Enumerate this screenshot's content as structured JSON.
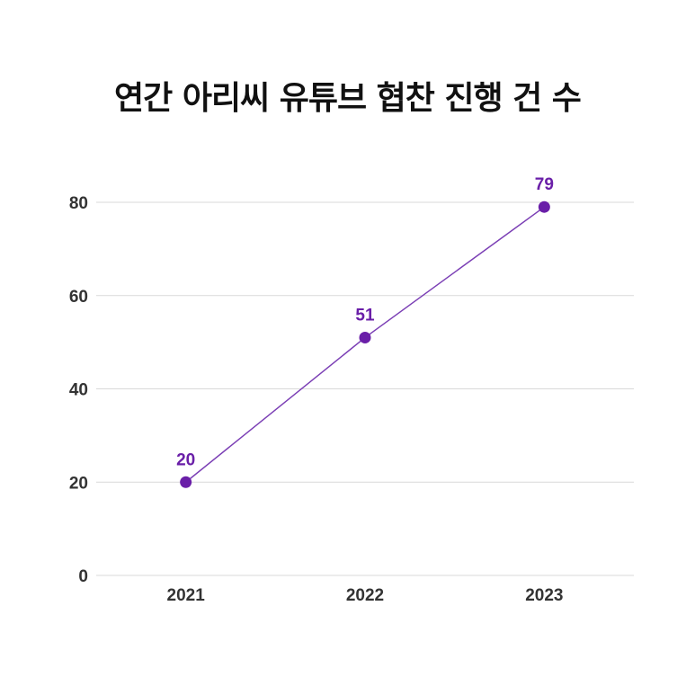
{
  "chart_data": {
    "type": "line",
    "title": "연간 아리씨 유튜브 협찬 진행 건 수",
    "categories": [
      "2021",
      "2022",
      "2023"
    ],
    "series": [
      {
        "values": [
          20,
          51,
          79
        ]
      }
    ],
    "ylim": [
      0,
      80
    ],
    "yticks": [
      0,
      20,
      40,
      60,
      80
    ],
    "xlabel": "",
    "ylabel": "",
    "grid": true,
    "legend": "none",
    "data_labels": true,
    "colors": {
      "line": "#7b3fb5",
      "marker": "#6a1fa8",
      "data_label": "#6a1fa8",
      "grid": "#d9d9d9",
      "title": "#111111",
      "tick": "#333333"
    }
  }
}
